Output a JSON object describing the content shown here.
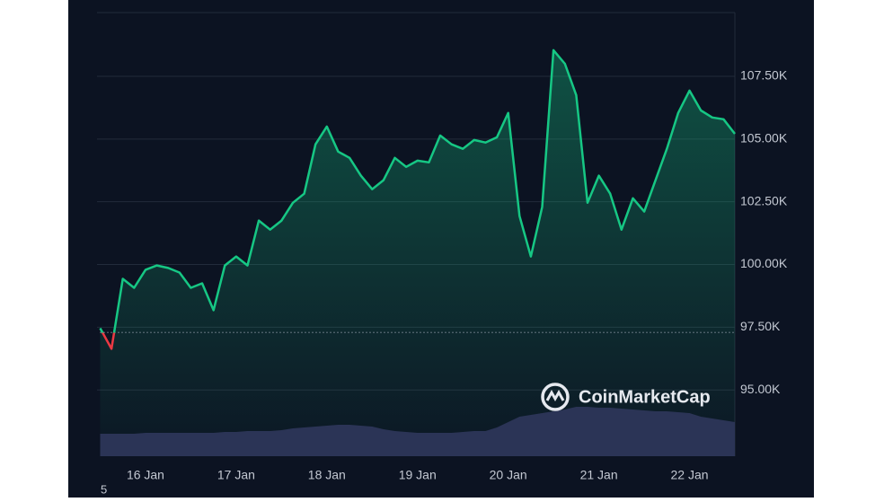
{
  "chart_data": {
    "type": "line",
    "categories": [
      null,
      null,
      null,
      null,
      "16 Jan",
      null,
      null,
      null,
      null,
      null,
      null,
      null,
      "17 Jan",
      null,
      null,
      null,
      null,
      null,
      null,
      null,
      "18 Jan",
      null,
      null,
      null,
      null,
      null,
      null,
      null,
      "19 Jan",
      null,
      null,
      null,
      null,
      null,
      null,
      null,
      "20 Jan",
      null,
      null,
      null,
      null,
      null,
      null,
      null,
      "21 Jan",
      null,
      null,
      null,
      null,
      null,
      null,
      null,
      "22 Jan",
      null,
      null,
      null,
      null
    ],
    "series": [
      {
        "name": "Price",
        "color": "#16c784",
        "below_color": "#ea3943",
        "values": [
          97460,
          96640,
          99430,
          99070,
          99790,
          99960,
          99860,
          99680,
          99070,
          99250,
          98180,
          99960,
          100320,
          99960,
          101750,
          101390,
          101750,
          102460,
          102820,
          104790,
          105500,
          104500,
          104250,
          103540,
          103000,
          103360,
          104250,
          103890,
          104140,
          104070,
          105140,
          104790,
          104610,
          104960,
          104860,
          105070,
          106040,
          101930,
          100320,
          102290,
          108540,
          108000,
          106750,
          102460,
          103540,
          102820,
          101390,
          102640,
          102110,
          103360,
          104610,
          106040,
          106930,
          106140,
          105860,
          105790,
          105210
        ]
      },
      {
        "name": "Volume",
        "color": "#2b3456",
        "axis": "y2",
        "values": [
          25,
          25,
          25,
          25,
          26,
          26,
          26,
          26,
          26,
          26,
          26,
          27,
          27,
          28,
          28,
          28,
          29,
          31,
          32,
          33,
          34,
          35,
          35,
          34,
          33,
          30,
          28,
          27,
          26,
          26,
          26,
          26,
          27,
          28,
          28,
          32,
          38,
          44,
          46,
          48,
          50,
          52,
          55,
          55,
          54,
          54,
          53,
          52,
          51,
          50,
          50,
          49,
          48,
          44,
          42,
          40,
          38
        ]
      }
    ],
    "baseline": 97290,
    "ylim": [
      92360,
      110040
    ],
    "yticks": [
      {
        "value": 95000,
        "label": "95.00K"
      },
      {
        "value": 97500,
        "label": "97.50K"
      },
      {
        "value": 100000,
        "label": "100.00K"
      },
      {
        "value": 102500,
        "label": "102.50K"
      },
      {
        "value": 105000,
        "label": "105.00K"
      },
      {
        "value": 107500,
        "label": "107.50K"
      }
    ],
    "y2lim": [
      0,
      100
    ],
    "grid": true,
    "watermark": "CoinMarketCap",
    "footnote": "5"
  }
}
